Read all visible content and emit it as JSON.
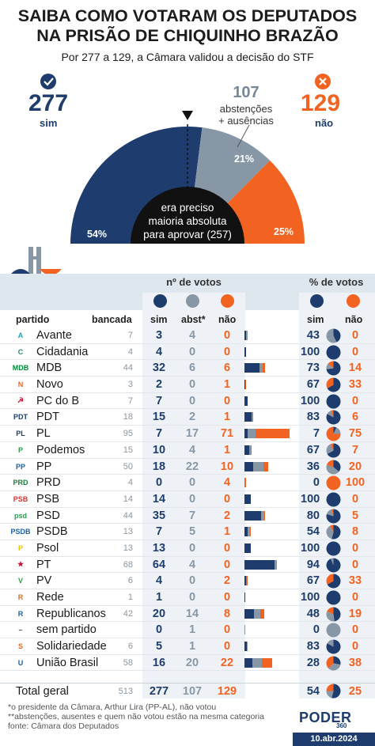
{
  "title_line1": "SAIBA COMO VOTARAM OS DEPUTADOS",
  "title_line2": "NA PRISÃO DE CHIQUINHO BRAZÃO",
  "subtitle": "Por 277 a 129, a Câmara validou a decisão do STF",
  "summary": {
    "sim_value": "277",
    "sim_label": "sim",
    "abst_value": "107",
    "abst_label1": "abstenções",
    "abst_label2": "+ ausências",
    "nao_value": "129",
    "nao_label": "não",
    "center_line1": "era preciso",
    "center_line2": "maioria absoluta",
    "center_line3": "para aprovar (257)",
    "sim_pct": "54%",
    "abst_pct": "21%",
    "nao_pct": "25%"
  },
  "colors": {
    "sim": "#1e3d6e",
    "abst": "#8797a6",
    "nao": "#f26322",
    "band": "#dfe7ee"
  },
  "table": {
    "header_votos": "nº de votos",
    "header_pct": "% de votos",
    "col_partido": "partido",
    "col_bancada": "bancada",
    "col_sim": "sim",
    "col_abst": "abst*",
    "col_nao": "não",
    "col_pct_sim": "sim",
    "col_pct_nao": "não"
  },
  "chart_data": {
    "type": "table",
    "summary": {
      "sim": 277,
      "abst": 107,
      "nao": 129,
      "sim_pct": 54,
      "abst_pct": 21,
      "nao_pct": 25,
      "needed": 257
    },
    "rows": [
      {
        "partido": "Avante",
        "bancada": "7",
        "sim": "3",
        "abst": "4",
        "nao": "0",
        "psim": "43",
        "pnao": "0"
      },
      {
        "partido": "Cidadania",
        "bancada": "4",
        "sim": "4",
        "abst": "0",
        "nao": "0",
        "psim": "100",
        "pnao": "0"
      },
      {
        "partido": "MDB",
        "bancada": "44",
        "sim": "32",
        "abst": "6",
        "nao": "6",
        "psim": "73",
        "pnao": "14"
      },
      {
        "partido": "Novo",
        "bancada": "3",
        "sim": "2",
        "abst": "0",
        "nao": "1",
        "psim": "67",
        "pnao": "33"
      },
      {
        "partido": "PC do B",
        "bancada": "7",
        "sim": "7",
        "abst": "0",
        "nao": "0",
        "psim": "100",
        "pnao": "0"
      },
      {
        "partido": "PDT",
        "bancada": "18",
        "sim": "15",
        "abst": "2",
        "nao": "1",
        "psim": "83",
        "pnao": "6"
      },
      {
        "partido": "PL",
        "bancada": "95",
        "sim": "7",
        "abst": "17",
        "nao": "71",
        "psim": "7",
        "pnao": "75"
      },
      {
        "partido": "Podemos",
        "bancada": "15",
        "sim": "10",
        "abst": "4",
        "nao": "1",
        "psim": "67",
        "pnao": "7"
      },
      {
        "partido": "PP",
        "bancada": "50",
        "sim": "18",
        "abst": "22",
        "nao": "10",
        "psim": "36",
        "pnao": "20"
      },
      {
        "partido": "PRD",
        "bancada": "4",
        "sim": "0",
        "abst": "0",
        "nao": "4",
        "psim": "0",
        "pnao": "100"
      },
      {
        "partido": "PSB",
        "bancada": "14",
        "sim": "14",
        "abst": "0",
        "nao": "0",
        "psim": "100",
        "pnao": "0"
      },
      {
        "partido": "PSD",
        "bancada": "44",
        "sim": "35",
        "abst": "7",
        "nao": "2",
        "psim": "80",
        "pnao": "5"
      },
      {
        "partido": "PSDB",
        "bancada": "13",
        "sim": "7",
        "abst": "5",
        "nao": "1",
        "psim": "54",
        "pnao": "8"
      },
      {
        "partido": "Psol",
        "bancada": "13",
        "sim": "13",
        "abst": "0",
        "nao": "0",
        "psim": "100",
        "pnao": "0"
      },
      {
        "partido": "PT",
        "bancada": "68",
        "sim": "64",
        "abst": "4",
        "nao": "0",
        "psim": "94",
        "pnao": "0"
      },
      {
        "partido": "PV",
        "bancada": "6",
        "sim": "4",
        "abst": "0",
        "nao": "2",
        "psim": "67",
        "pnao": "33"
      },
      {
        "partido": "Rede",
        "bancada": "1",
        "sim": "1",
        "abst": "0",
        "nao": "0",
        "psim": "100",
        "pnao": "0"
      },
      {
        "partido": "Republicanos",
        "bancada": "42",
        "sim": "20",
        "abst": "14",
        "nao": "8",
        "psim": "48",
        "pnao": "19"
      },
      {
        "partido": "sem partido",
        "bancada": "",
        "sim": "0",
        "abst": "1",
        "nao": "0",
        "psim": "0",
        "pnao": "0"
      },
      {
        "partido": "Solidariedade",
        "bancada": "6",
        "sim": "5",
        "abst": "1",
        "nao": "0",
        "psim": "83",
        "pnao": "0"
      },
      {
        "partido": "União Brasil",
        "bancada": "58",
        "sim": "16",
        "abst": "20",
        "nao": "22",
        "psim": "28",
        "pnao": "38"
      }
    ],
    "total": {
      "partido": "Total geral",
      "bancada": "513",
      "sim": "277",
      "abst": "107",
      "nao": "129",
      "psim": "54",
      "pnao": "25"
    }
  },
  "logos": [
    "A",
    "C",
    "MDB",
    "N",
    "☭",
    "PDT",
    "PL",
    "P",
    "PP",
    "PRD",
    "PSB",
    "psd",
    "PSDB",
    "P",
    "★",
    "V",
    "R",
    "R",
    "–",
    "S",
    "U"
  ],
  "footnotes": {
    "line1": "*o presidente da Câmara, Arthur Lira (PP-AL), não votou",
    "line2": "**abstenções, ausentes e quem não votou estão na mesma categoria",
    "line3": "fonte: Câmara dos Deputados"
  },
  "brand": {
    "name": "PODER",
    "sub": "360",
    "date": "10.abr.2024"
  }
}
